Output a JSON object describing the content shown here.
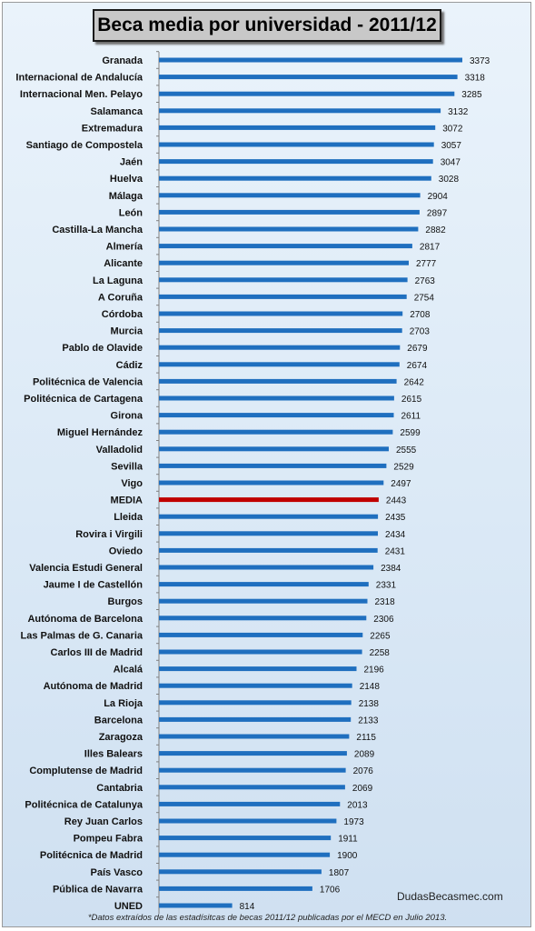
{
  "chart_data": {
    "type": "bar",
    "orientation": "horizontal",
    "title": "Beca media por universidad - 2011/12",
    "categories": [
      "Granada",
      "Internacional de Andalucía",
      "Internacional Men. Pelayo",
      "Salamanca",
      "Extremadura",
      "Santiago de Compostela",
      "Jaén",
      "Huelva",
      "Málaga",
      "León",
      "Castilla-La Mancha",
      "Almería",
      "Alicante",
      "La Laguna",
      "A Coruña",
      "Córdoba",
      "Murcia",
      "Pablo de Olavide",
      "Cádiz",
      "Politécnica de Valencia",
      "Politécnica de Cartagena",
      "Girona",
      "Miguel Hernández",
      "Valladolid",
      "Sevilla",
      "Vigo",
      "MEDIA",
      "Lleida",
      "Rovira i Virgili",
      "Oviedo",
      "Valencia Estudi General",
      "Jaume I de Castellón",
      "Burgos",
      "Autónoma de Barcelona",
      "Las Palmas de G. Canaria",
      "Carlos III de Madrid",
      "Alcalá",
      "Autónoma de Madrid",
      "La Rioja",
      "Barcelona",
      "Zaragoza",
      "Illes Balears",
      "Complutense de Madrid",
      "Cantabria",
      "Politécnica de Catalunya",
      "Rey Juan Carlos",
      "Pompeu Fabra",
      "Politécnica de Madrid",
      "País Vasco",
      "Pública de Navarra",
      "UNED"
    ],
    "values": [
      3373,
      3318,
      3285,
      3132,
      3072,
      3057,
      3047,
      3028,
      2904,
      2897,
      2882,
      2817,
      2777,
      2763,
      2754,
      2708,
      2703,
      2679,
      2674,
      2642,
      2615,
      2611,
      2599,
      2555,
      2529,
      2497,
      2443,
      2435,
      2434,
      2431,
      2384,
      2331,
      2318,
      2306,
      2265,
      2258,
      2196,
      2148,
      2138,
      2133,
      2115,
      2089,
      2076,
      2069,
      2013,
      1973,
      1911,
      1900,
      1807,
      1706,
      814
    ],
    "highlight_category": "MEDIA",
    "xlim": [
      0,
      3373
    ],
    "colors": {
      "bar": "#1f6fbf",
      "highlight_bar": "#c00000",
      "axis": "#808080"
    },
    "grid": false,
    "legend": "none"
  },
  "watermark": "DudasBecasmec.com",
  "footnote": "*Datos extraídos de las estadísitcas de becas 2011/12  publicadas por el MECD en Julio 2013."
}
